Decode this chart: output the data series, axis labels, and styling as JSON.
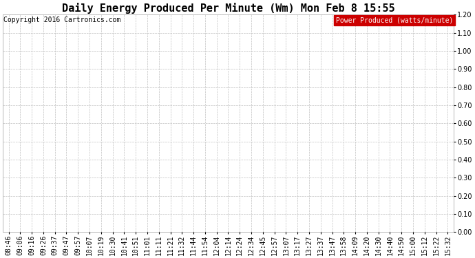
{
  "title": "Daily Energy Produced Per Minute (Wm) Mon Feb 8 15:55",
  "copyright_text": "Copyright 2016 Cartronics.com",
  "legend_label": "Power Produced (watts/minute)",
  "legend_bg": "#cc0000",
  "legend_fg": "#ffffff",
  "ylim": [
    0.0,
    1.2
  ],
  "yticks": [
    0.0,
    0.1,
    0.2,
    0.3,
    0.4,
    0.5,
    0.6,
    0.7,
    0.8,
    0.9,
    1.0,
    1.1,
    1.2
  ],
  "x_labels": [
    "08:46",
    "09:06",
    "09:16",
    "09:26",
    "09:37",
    "09:47",
    "09:57",
    "10:07",
    "10:19",
    "10:30",
    "10:41",
    "10:51",
    "11:01",
    "11:11",
    "11:21",
    "11:32",
    "11:44",
    "11:54",
    "12:04",
    "12:14",
    "12:24",
    "12:34",
    "12:45",
    "12:57",
    "13:07",
    "13:17",
    "13:27",
    "13:37",
    "13:47",
    "13:58",
    "14:09",
    "14:20",
    "14:30",
    "14:40",
    "14:50",
    "15:00",
    "15:12",
    "15:22",
    "15:32"
  ],
  "background_color": "#ffffff",
  "plot_bg_color": "#ffffff",
  "grid_color": "#c0c0c0",
  "title_fontsize": 11,
  "tick_fontsize": 7,
  "copyright_fontsize": 7,
  "legend_fontsize": 7
}
